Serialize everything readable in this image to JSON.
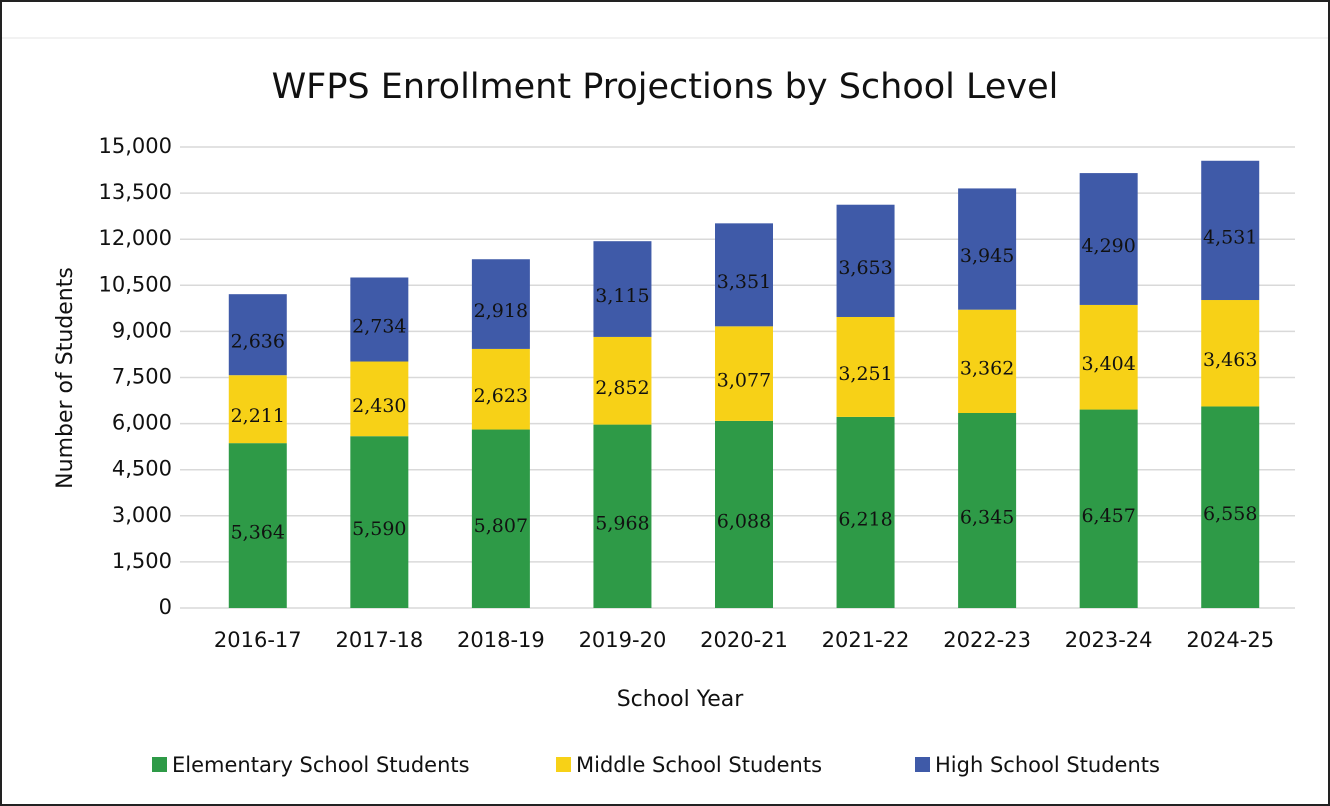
{
  "chart_data": {
    "type": "stacked_bar",
    "title": "WFPS Enrollment Projections by School Level",
    "x_label": "School Year",
    "y_label": "Number of Students",
    "categories": [
      "2016-17",
      "2017-18",
      "2018-19",
      "2019-20",
      "2020-21",
      "2021-22",
      "2022-23",
      "2023-24",
      "2024-25"
    ],
    "series": [
      {
        "name": "Elementary School Students",
        "color": "#2e9a47",
        "values": [
          5364,
          5590,
          5807,
          5968,
          6088,
          6218,
          6345,
          6457,
          6558
        ],
        "value_labels": [
          "5,364",
          "5,590",
          "5,807",
          "5,968",
          "6,088",
          "6,218",
          "6,345",
          "6,457",
          "6,558"
        ]
      },
      {
        "name": "Middle School Students",
        "color": "#f7d117",
        "values": [
          2211,
          2430,
          2623,
          2852,
          3077,
          3251,
          3362,
          3404,
          3463
        ],
        "value_labels": [
          "2,211",
          "2,430",
          "2,623",
          "2,852",
          "3,077",
          "3,251",
          "3,362",
          "3,404",
          "3,463"
        ]
      },
      {
        "name": "High School Students",
        "color": "#3f5aa8",
        "values": [
          2636,
          2734,
          2918,
          3115,
          3351,
          3653,
          3945,
          4290,
          4531
        ],
        "value_labels": [
          "2,636",
          "2,734",
          "2,918",
          "3,115",
          "3,351",
          "3,653",
          "3,945",
          "4,290",
          "4,531"
        ]
      }
    ],
    "ylim": [
      0,
      15000
    ],
    "yticks": [
      0,
      {
        "value": 1500,
        "label": "1,500"
      },
      {
        "value": 3000,
        "label": "3,000"
      },
      {
        "value": 4500,
        "label": "4,500"
      },
      {
        "value": 6000,
        "label": "6,000"
      },
      {
        "value": 7500,
        "label": "7,500"
      },
      {
        "value": 9000,
        "label": "9,000"
      },
      {
        "value": 10500,
        "label": "10,500"
      },
      {
        "value": 12000,
        "label": "12,000"
      },
      {
        "value": 13500,
        "label": "13,500"
      },
      {
        "value": 15000,
        "label": "15,000"
      }
    ],
    "grid": true,
    "legend": "bottom"
  }
}
